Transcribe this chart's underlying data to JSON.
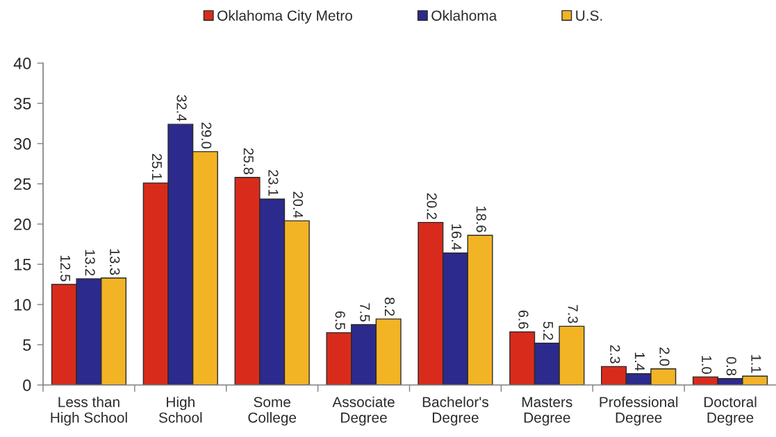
{
  "chart_data": {
    "type": "bar",
    "categories": [
      "Less than\nHigh School",
      "High\nSchool",
      "Some\nCollege",
      "Associate\nDegree",
      "Bachelor's\nDegree",
      "Masters\nDegree",
      "Professional\nDegree",
      "Doctoral\nDegree"
    ],
    "series": [
      {
        "name": "Oklahoma City Metro",
        "color": "#d92b1c",
        "values": [
          12.5,
          25.1,
          25.8,
          6.5,
          20.2,
          6.6,
          2.3,
          1.0
        ],
        "value_labels": [
          "12.5",
          "25.1",
          "25.8",
          "6.5",
          "20.2",
          "6.6",
          "2.3",
          "1.0"
        ]
      },
      {
        "name": "Oklahoma",
        "color": "#2c2a8c",
        "values": [
          13.2,
          32.4,
          23.1,
          7.5,
          16.4,
          5.2,
          1.4,
          0.8
        ],
        "value_labels": [
          "13.2",
          "32.4",
          "23.1",
          "7.5",
          "16.4",
          "5.2",
          "1.4",
          "0.8"
        ]
      },
      {
        "name": "U.S.",
        "color": "#f2b424",
        "values": [
          13.3,
          29.0,
          20.4,
          8.2,
          18.6,
          7.3,
          2.0,
          1.1
        ],
        "value_labels": [
          "13.3",
          "29.0",
          "20.4",
          "8.2",
          "18.6",
          "7.3",
          "2.0",
          "1.1"
        ]
      }
    ],
    "ylim": [
      0,
      40
    ],
    "yticks": [
      0,
      5,
      10,
      15,
      20,
      25,
      30,
      35,
      40
    ],
    "legend": "top"
  }
}
